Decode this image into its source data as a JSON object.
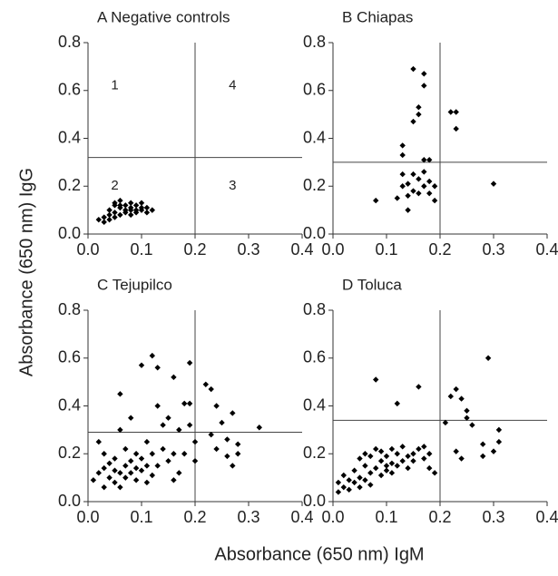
{
  "axis_labels": {
    "y": "Absorbance (650 nm) IgG",
    "x": "Absorbance (650 nm) IgM"
  },
  "chart_data": [
    {
      "type": "scatter",
      "title": "A Negative controls",
      "color": "#000000",
      "xlim": [
        0,
        0.4
      ],
      "ylim": [
        0,
        0.8
      ],
      "xticks": [
        {
          "value": 0,
          "label": "0.0"
        },
        0.1,
        0.2,
        0.3,
        0.4
      ],
      "yticks": [
        {
          "value": 0,
          "label": "0.0"
        },
        0.2,
        0.4,
        0.6,
        0.8
      ],
      "cutoff_x": 0.2,
      "cutoff_y": 0.32,
      "annotations": [
        {
          "text": "1",
          "x": 0.05,
          "y": 0.62
        },
        {
          "text": "4",
          "x": 0.27,
          "y": 0.62
        },
        {
          "text": "2",
          "x": 0.05,
          "y": 0.2
        },
        {
          "text": "3",
          "x": 0.27,
          "y": 0.2
        }
      ],
      "x": [
        0.02,
        0.03,
        0.03,
        0.04,
        0.04,
        0.05,
        0.05,
        0.05,
        0.06,
        0.06,
        0.06,
        0.07,
        0.07,
        0.07,
        0.08,
        0.08,
        0.08,
        0.09,
        0.09,
        0.09,
        0.1,
        0.1,
        0.1,
        0.11,
        0.11,
        0.12,
        0.05,
        0.06,
        0.08,
        0.04
      ],
      "y": [
        0.06,
        0.07,
        0.05,
        0.08,
        0.1,
        0.09,
        0.12,
        0.13,
        0.11,
        0.08,
        0.14,
        0.1,
        0.12,
        0.09,
        0.11,
        0.13,
        0.08,
        0.1,
        0.12,
        0.09,
        0.11,
        0.1,
        0.13,
        0.09,
        0.11,
        0.1,
        0.07,
        0.12,
        0.1,
        0.06
      ]
    },
    {
      "type": "scatter",
      "title": "B Chiapas",
      "color": "#000000",
      "xlim": [
        0,
        0.4
      ],
      "ylim": [
        0,
        0.8
      ],
      "xticks": [
        {
          "value": 0,
          "label": "0.0"
        },
        0.1,
        0.2,
        0.3,
        0.4
      ],
      "yticks": [
        {
          "value": 0,
          "label": "0.0"
        },
        0.2,
        0.4,
        0.6,
        0.8
      ],
      "cutoff_x": 0.2,
      "cutoff_y": 0.3,
      "x": [
        0.08,
        0.12,
        0.13,
        0.13,
        0.13,
        0.13,
        0.14,
        0.14,
        0.14,
        0.15,
        0.15,
        0.15,
        0.15,
        0.16,
        0.16,
        0.16,
        0.16,
        0.17,
        0.17,
        0.17,
        0.17,
        0.17,
        0.18,
        0.18,
        0.19,
        0.19,
        0.22,
        0.23,
        0.23,
        0.3,
        0.18
      ],
      "y": [
        0.14,
        0.15,
        0.2,
        0.25,
        0.33,
        0.37,
        0.1,
        0.16,
        0.21,
        0.18,
        0.25,
        0.47,
        0.69,
        0.5,
        0.53,
        0.17,
        0.23,
        0.26,
        0.2,
        0.62,
        0.67,
        0.31,
        0.17,
        0.22,
        0.2,
        0.14,
        0.51,
        0.51,
        0.44,
        0.21,
        0.31
      ]
    },
    {
      "type": "scatter",
      "title": "C Tejupilco",
      "color": "#000000",
      "xlim": [
        0,
        0.4
      ],
      "ylim": [
        0,
        0.8
      ],
      "xticks": [
        {
          "value": 0,
          "label": "0.0"
        },
        0.1,
        0.2,
        0.3,
        0.4
      ],
      "yticks": [
        {
          "value": 0,
          "label": "0.0"
        },
        0.2,
        0.4,
        0.6,
        0.8
      ],
      "cutoff_x": 0.2,
      "cutoff_y": 0.29,
      "x": [
        0.01,
        0.02,
        0.02,
        0.03,
        0.03,
        0.03,
        0.04,
        0.04,
        0.05,
        0.05,
        0.05,
        0.06,
        0.06,
        0.06,
        0.06,
        0.07,
        0.07,
        0.07,
        0.08,
        0.08,
        0.08,
        0.09,
        0.09,
        0.09,
        0.1,
        0.1,
        0.1,
        0.11,
        0.11,
        0.11,
        0.12,
        0.12,
        0.12,
        0.13,
        0.13,
        0.13,
        0.14,
        0.14,
        0.15,
        0.15,
        0.16,
        0.16,
        0.16,
        0.17,
        0.17,
        0.18,
        0.18,
        0.19,
        0.19,
        0.19,
        0.2,
        0.2,
        0.22,
        0.23,
        0.23,
        0.24,
        0.24,
        0.25,
        0.26,
        0.26,
        0.27,
        0.27,
        0.28,
        0.28,
        0.32
      ],
      "y": [
        0.09,
        0.12,
        0.25,
        0.06,
        0.14,
        0.2,
        0.1,
        0.16,
        0.08,
        0.13,
        0.18,
        0.12,
        0.06,
        0.45,
        0.3,
        0.15,
        0.1,
        0.22,
        0.12,
        0.17,
        0.35,
        0.14,
        0.2,
        0.09,
        0.13,
        0.18,
        0.57,
        0.15,
        0.08,
        0.25,
        0.61,
        0.2,
        0.11,
        0.4,
        0.56,
        0.15,
        0.32,
        0.22,
        0.17,
        0.35,
        0.09,
        0.52,
        0.2,
        0.3,
        0.12,
        0.41,
        0.2,
        0.58,
        0.41,
        0.32,
        0.17,
        0.25,
        0.49,
        0.47,
        0.28,
        0.4,
        0.22,
        0.33,
        0.19,
        0.26,
        0.37,
        0.15,
        0.2,
        0.24,
        0.31
      ]
    },
    {
      "type": "scatter",
      "title": "D Toluca",
      "color": "#000000",
      "xlim": [
        0,
        0.4
      ],
      "ylim": [
        0,
        0.8
      ],
      "xticks": [
        {
          "value": 0,
          "label": "0.0"
        },
        0.1,
        0.2,
        0.3,
        0.4
      ],
      "yticks": [
        {
          "value": 0,
          "label": "0.0"
        },
        0.2,
        0.4,
        0.6,
        0.8
      ],
      "cutoff_x": 0.2,
      "cutoff_y": 0.34,
      "x": [
        0.01,
        0.01,
        0.02,
        0.02,
        0.03,
        0.03,
        0.04,
        0.04,
        0.05,
        0.05,
        0.05,
        0.06,
        0.06,
        0.06,
        0.07,
        0.07,
        0.07,
        0.08,
        0.08,
        0.08,
        0.09,
        0.09,
        0.09,
        0.1,
        0.1,
        0.1,
        0.11,
        0.11,
        0.11,
        0.12,
        0.12,
        0.12,
        0.13,
        0.13,
        0.14,
        0.14,
        0.15,
        0.15,
        0.16,
        0.16,
        0.17,
        0.17,
        0.18,
        0.18,
        0.19,
        0.21,
        0.22,
        0.23,
        0.23,
        0.24,
        0.24,
        0.25,
        0.25,
        0.26,
        0.28,
        0.28,
        0.29,
        0.3,
        0.31,
        0.31
      ],
      "y": [
        0.04,
        0.08,
        0.06,
        0.11,
        0.09,
        0.05,
        0.13,
        0.08,
        0.18,
        0.1,
        0.06,
        0.15,
        0.2,
        0.09,
        0.12,
        0.19,
        0.07,
        0.14,
        0.22,
        0.51,
        0.11,
        0.17,
        0.21,
        0.13,
        0.15,
        0.19,
        0.12,
        0.16,
        0.22,
        0.41,
        0.15,
        0.2,
        0.17,
        0.23,
        0.19,
        0.14,
        0.2,
        0.17,
        0.48,
        0.22,
        0.18,
        0.23,
        0.14,
        0.2,
        0.12,
        0.33,
        0.44,
        0.47,
        0.21,
        0.43,
        0.18,
        0.38,
        0.35,
        0.32,
        0.24,
        0.19,
        0.6,
        0.21,
        0.3,
        0.25
      ]
    }
  ]
}
